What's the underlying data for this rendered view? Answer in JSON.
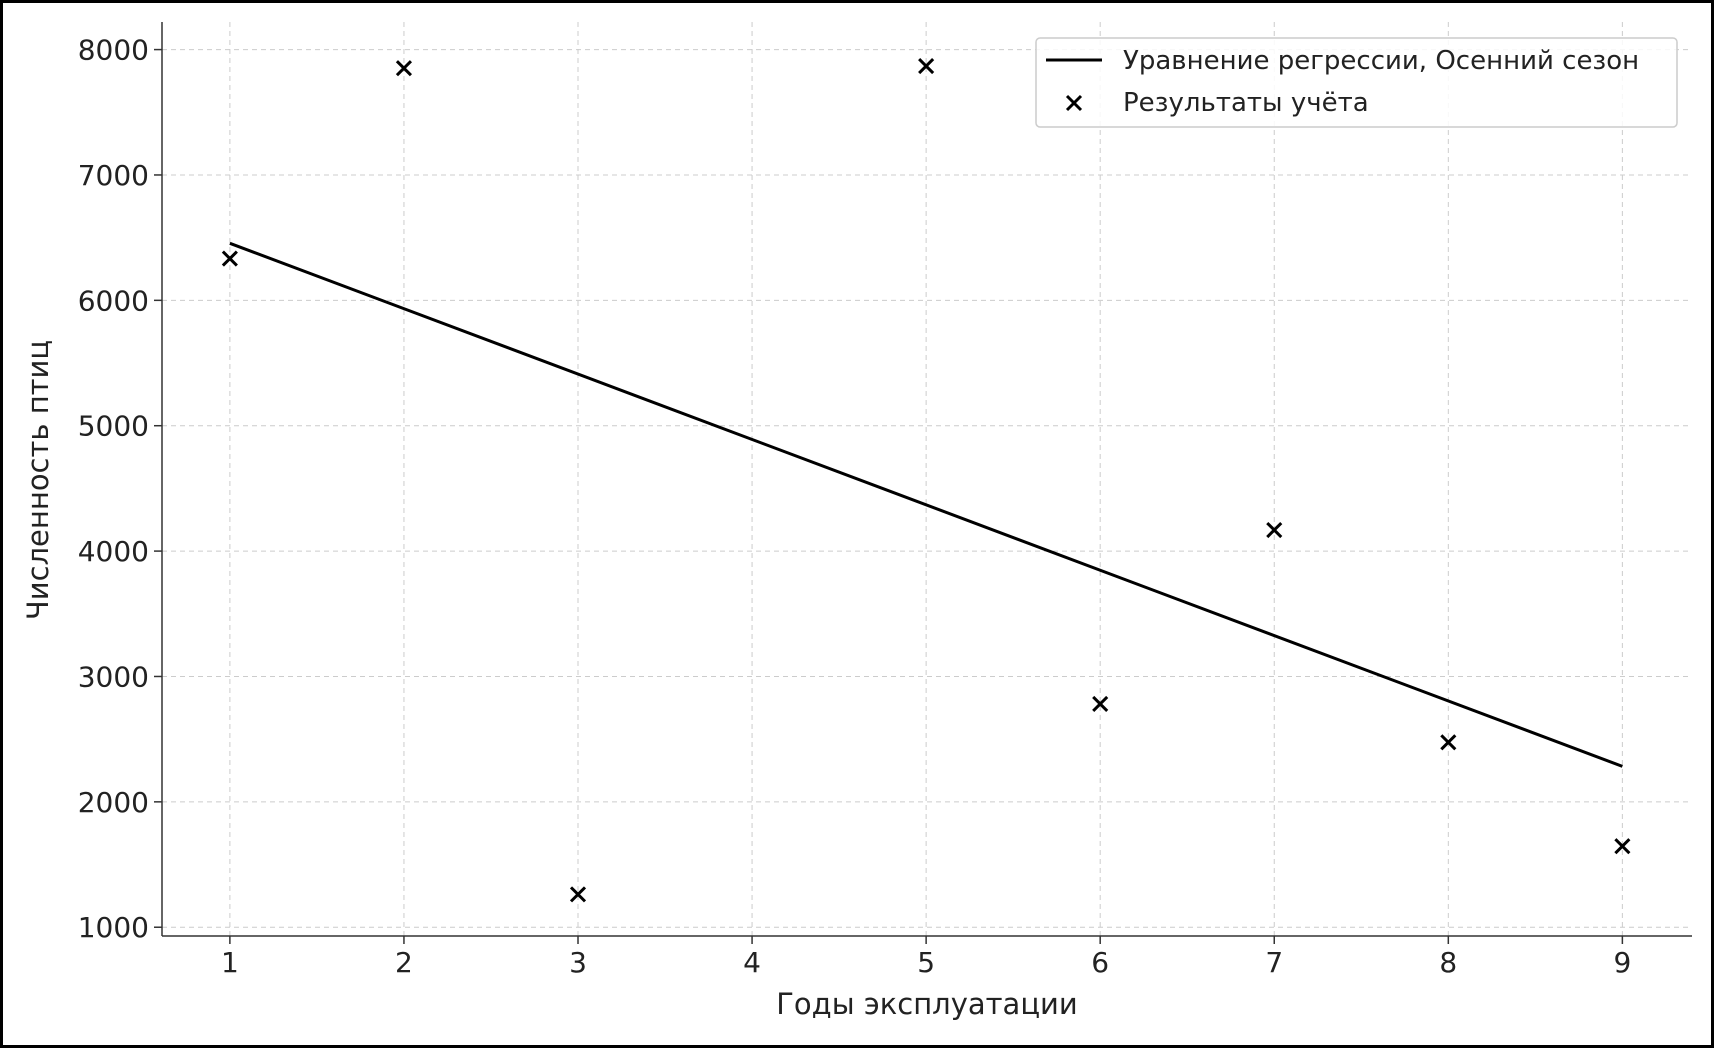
{
  "chart_data": {
    "type": "scatter",
    "title": "",
    "xlabel": "Годы эксплуатации",
    "ylabel": "Численность птиц",
    "xlim": [
      0.61,
      9.4
    ],
    "ylim": [
      930,
      8220
    ],
    "xticks": [
      1,
      2,
      3,
      4,
      5,
      6,
      7,
      8,
      9
    ],
    "yticks": [
      1000,
      2000,
      3000,
      4000,
      5000,
      6000,
      7000,
      8000
    ],
    "grid": true,
    "legend_placement": "top-right",
    "series": [
      {
        "name": "Уравнение регрессии, Осенний сезон",
        "kind": "line",
        "color": "#000000",
        "x": [
          1,
          9
        ],
        "y": [
          6455,
          2283
        ]
      },
      {
        "name": "Результаты учёта",
        "kind": "scatter",
        "marker": "x",
        "color": "#000000",
        "x": [
          1,
          2,
          3,
          5,
          6,
          7,
          8,
          9
        ],
        "y": [
          6333,
          7852,
          1262,
          7869,
          2781,
          4168,
          2475,
          1646
        ]
      }
    ]
  }
}
